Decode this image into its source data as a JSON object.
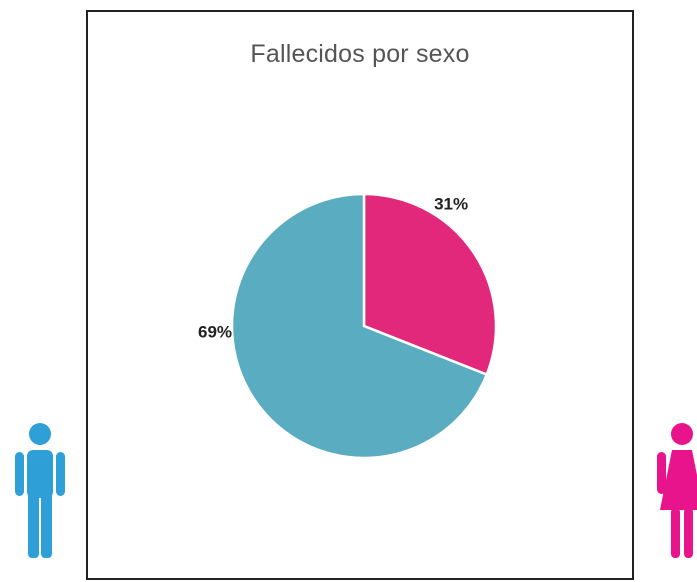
{
  "colors": {
    "male": "#5aacc1",
    "female": "#e2287a",
    "male_figure": "#2f9fd8",
    "female_figure": "#e8148c"
  },
  "icons": {
    "male": "male-person-icon",
    "female": "female-person-icon"
  },
  "chart_data": {
    "type": "pie",
    "title": "Fallecidos por sexo",
    "slices": [
      {
        "value": 31,
        "label": "31%",
        "color": "#e2287a"
      },
      {
        "value": 69,
        "label": "69%",
        "color": "#5aacc1"
      }
    ],
    "start_angle_deg": 0,
    "direction": "clockwise",
    "legend": "none"
  }
}
